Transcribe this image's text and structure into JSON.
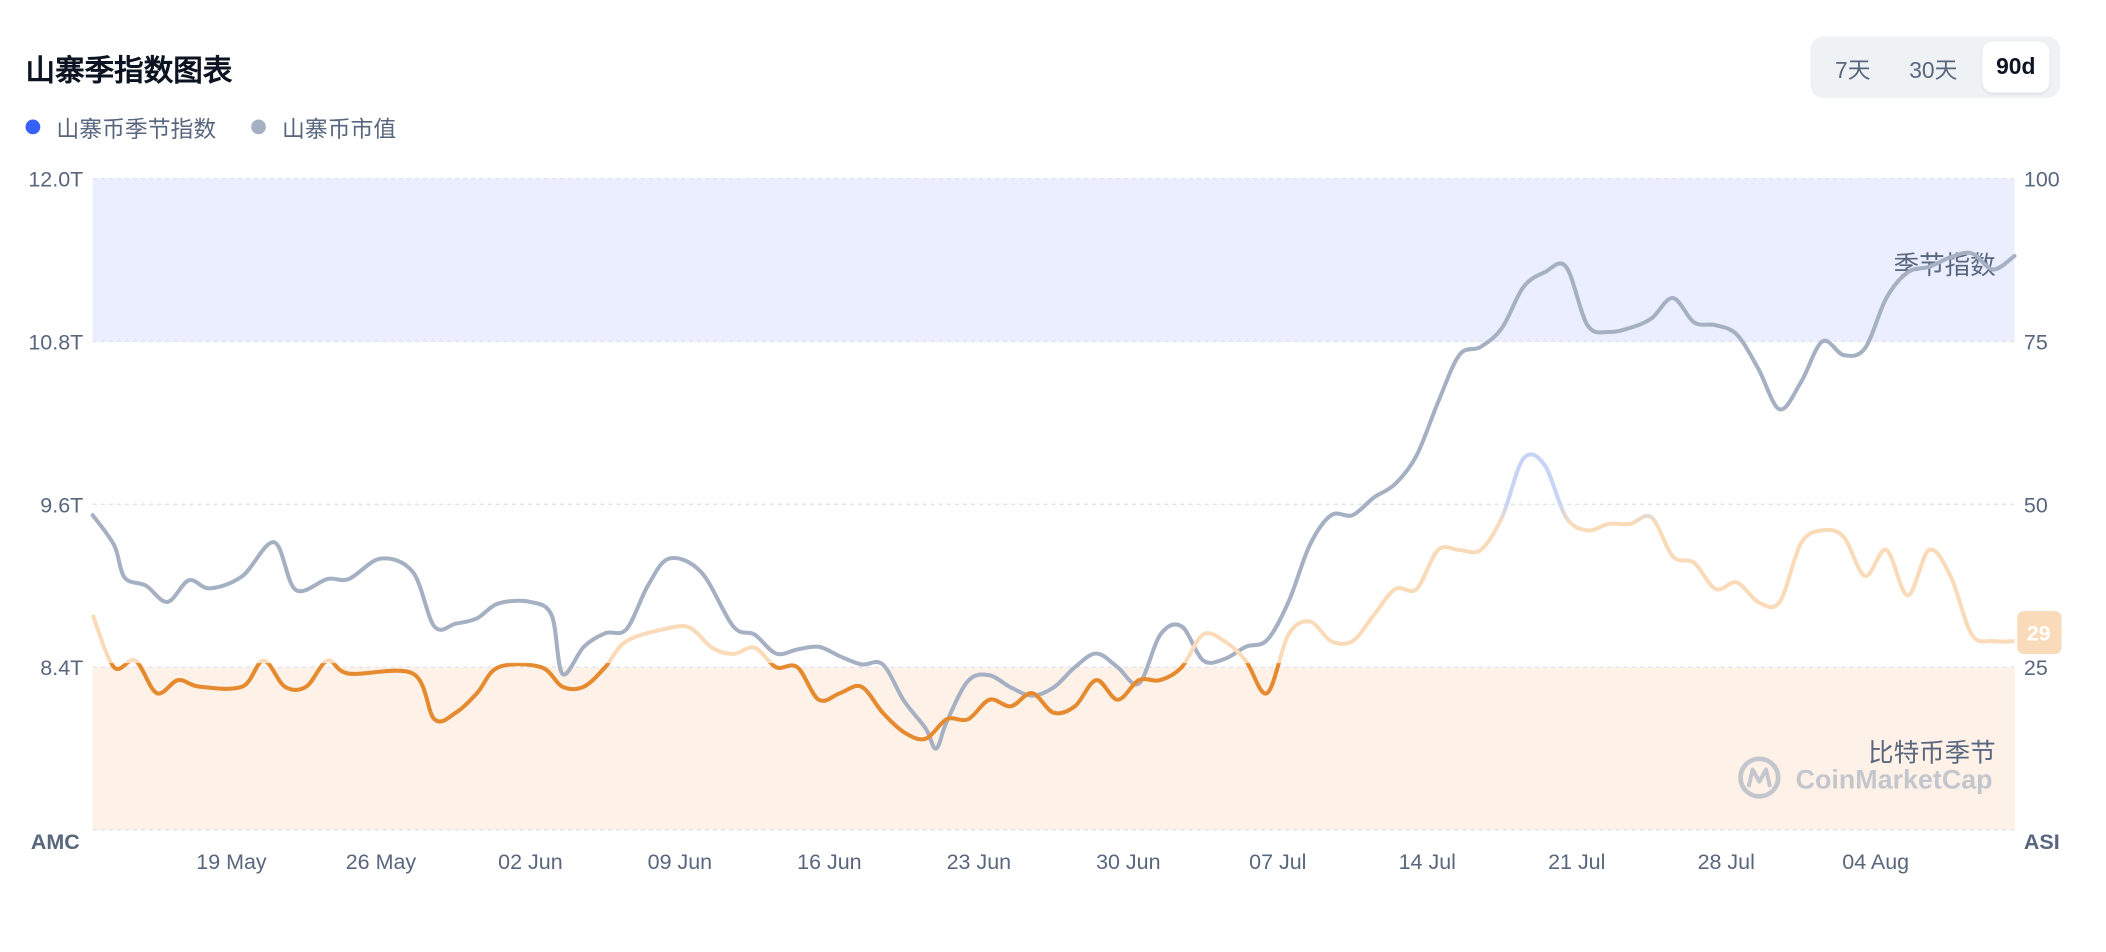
{
  "header": {
    "title": "山寨季指数图表"
  },
  "legend": [
    {
      "label": "山寨币季节指数",
      "color": "#3861fb"
    },
    {
      "label": "山寨币市值",
      "color": "#a6b0c3"
    }
  ],
  "range_toggle": {
    "options": [
      "7天",
      "30天",
      "90d"
    ],
    "selected": "90d"
  },
  "chart_data": {
    "type": "line",
    "left_axis": {
      "name": "AMC",
      "ticks": [
        "12.0T",
        "10.8T",
        "9.6T",
        "8.4T"
      ],
      "range": [
        7.2,
        12.0
      ]
    },
    "right_axis": {
      "name": "ASI",
      "ticks": [
        "100",
        "75",
        "50",
        "25"
      ],
      "range": [
        0,
        100
      ]
    },
    "x_tick_labels": [
      "19 May",
      "26 May",
      "02 Jun",
      "09 Jun",
      "16 Jun",
      "23 Jun",
      "30 Jun",
      "07 Jul",
      "14 Jul",
      "21 Jul",
      "28 Jul",
      "04 Aug"
    ],
    "x_day_range": [
      0,
      90
    ],
    "x_tick_days": [
      6.5,
      13.5,
      20.5,
      27.5,
      34.5,
      41.5,
      48.5,
      55.5,
      62.5,
      69.5,
      76.5,
      83.5
    ],
    "zones": {
      "altcoin_season_min": 75,
      "bitcoin_season_max": 25,
      "altcoin_label": "季节指数",
      "bitcoin_label": "比特币季节"
    },
    "current_index": "29",
    "watermark": "CoinMarketCap",
    "series": [
      {
        "name": "山寨币季节指数",
        "axis": "right",
        "color_base": "#f7931a",
        "points": [
          [
            0,
            33
          ],
          [
            1,
            25
          ],
          [
            2,
            26
          ],
          [
            3,
            21
          ],
          [
            4,
            23
          ],
          [
            5,
            22
          ],
          [
            7,
            22
          ],
          [
            8,
            26
          ],
          [
            9,
            22
          ],
          [
            10,
            22
          ],
          [
            11,
            26
          ],
          [
            12,
            24
          ],
          [
            15,
            24
          ],
          [
            16,
            17
          ],
          [
            17,
            18
          ],
          [
            18,
            21
          ],
          [
            19,
            25
          ],
          [
            21,
            25
          ],
          [
            22,
            22
          ],
          [
            23,
            22
          ],
          [
            24,
            25
          ],
          [
            25,
            29
          ],
          [
            27,
            31
          ],
          [
            28,
            31
          ],
          [
            29,
            28
          ],
          [
            30,
            27
          ],
          [
            31,
            28
          ],
          [
            32,
            25
          ],
          [
            33,
            25
          ],
          [
            34,
            20
          ],
          [
            35,
            21
          ],
          [
            36,
            22
          ],
          [
            37,
            18
          ],
          [
            38,
            15
          ],
          [
            39,
            14
          ],
          [
            40,
            17
          ],
          [
            41,
            17
          ],
          [
            42,
            20
          ],
          [
            43,
            19
          ],
          [
            44,
            21
          ],
          [
            45,
            18
          ],
          [
            46,
            19
          ],
          [
            47,
            23
          ],
          [
            48,
            20
          ],
          [
            49,
            23
          ],
          [
            50,
            23
          ],
          [
            51,
            25
          ],
          [
            52,
            30
          ],
          [
            53,
            29
          ],
          [
            54,
            26
          ],
          [
            55,
            21
          ],
          [
            56,
            30
          ],
          [
            57,
            32
          ],
          [
            58,
            29
          ],
          [
            59,
            29
          ],
          [
            60,
            33
          ],
          [
            61,
            37
          ],
          [
            62,
            37
          ],
          [
            63,
            43
          ],
          [
            64,
            43
          ],
          [
            65,
            43
          ],
          [
            66,
            48
          ],
          [
            67,
            57
          ],
          [
            68,
            56
          ],
          [
            69,
            48
          ],
          [
            70,
            46
          ],
          [
            71,
            47
          ],
          [
            72,
            47
          ],
          [
            73,
            48
          ],
          [
            74,
            42
          ],
          [
            75,
            41
          ],
          [
            76,
            37
          ],
          [
            77,
            38
          ],
          [
            78,
            35
          ],
          [
            79,
            35
          ],
          [
            80,
            44
          ],
          [
            81,
            46
          ],
          [
            82,
            45
          ],
          [
            83,
            39
          ],
          [
            84,
            43
          ],
          [
            85,
            36
          ],
          [
            86,
            43
          ],
          [
            87,
            39
          ],
          [
            88,
            30
          ],
          [
            89,
            29
          ],
          [
            90,
            29
          ]
        ]
      },
      {
        "name": "山寨币市值",
        "axis": "left",
        "color": "#a6b0c3",
        "points": [
          [
            0,
            9.52
          ],
          [
            1,
            9.3
          ],
          [
            1.5,
            9.06
          ],
          [
            2.5,
            9.0
          ],
          [
            3.5,
            8.88
          ],
          [
            4.5,
            9.04
          ],
          [
            5.5,
            8.98
          ],
          [
            7,
            9.07
          ],
          [
            8.5,
            9.32
          ],
          [
            9.5,
            8.97
          ],
          [
            11,
            9.05
          ],
          [
            12,
            9.05
          ],
          [
            13.5,
            9.2
          ],
          [
            15,
            9.1
          ],
          [
            16,
            8.7
          ],
          [
            17,
            8.72
          ],
          [
            18,
            8.76
          ],
          [
            19,
            8.87
          ],
          [
            20.5,
            8.88
          ],
          [
            21.5,
            8.78
          ],
          [
            22,
            8.35
          ],
          [
            23,
            8.55
          ],
          [
            24,
            8.65
          ],
          [
            25,
            8.68
          ],
          [
            26,
            9.0
          ],
          [
            27,
            9.2
          ],
          [
            28.5,
            9.1
          ],
          [
            30,
            8.7
          ],
          [
            31,
            8.64
          ],
          [
            32,
            8.5
          ],
          [
            33,
            8.53
          ],
          [
            34,
            8.55
          ],
          [
            35,
            8.48
          ],
          [
            36,
            8.42
          ],
          [
            37,
            8.42
          ],
          [
            38,
            8.15
          ],
          [
            39,
            7.95
          ],
          [
            39.5,
            7.8
          ],
          [
            40,
            8.0
          ],
          [
            41,
            8.3
          ],
          [
            42,
            8.34
          ],
          [
            43,
            8.25
          ],
          [
            44,
            8.19
          ],
          [
            45,
            8.25
          ],
          [
            46,
            8.4
          ],
          [
            47,
            8.5
          ],
          [
            48,
            8.4
          ],
          [
            49,
            8.28
          ],
          [
            50,
            8.64
          ],
          [
            51,
            8.7
          ],
          [
            52,
            8.45
          ],
          [
            53,
            8.46
          ],
          [
            54,
            8.55
          ],
          [
            55,
            8.6
          ],
          [
            56,
            8.88
          ],
          [
            57,
            9.3
          ],
          [
            58,
            9.52
          ],
          [
            59,
            9.52
          ],
          [
            60,
            9.65
          ],
          [
            61,
            9.75
          ],
          [
            62,
            9.96
          ],
          [
            63,
            10.35
          ],
          [
            64,
            10.7
          ],
          [
            65,
            10.76
          ],
          [
            66,
            10.9
          ],
          [
            67,
            11.2
          ],
          [
            68,
            11.31
          ],
          [
            69,
            11.35
          ],
          [
            70,
            10.92
          ],
          [
            71,
            10.87
          ],
          [
            72,
            10.9
          ],
          [
            73,
            10.97
          ],
          [
            74,
            11.12
          ],
          [
            75,
            10.94
          ],
          [
            76,
            10.92
          ],
          [
            77,
            10.85
          ],
          [
            78,
            10.6
          ],
          [
            79,
            10.3
          ],
          [
            80,
            10.5
          ],
          [
            81,
            10.8
          ],
          [
            82,
            10.7
          ],
          [
            83,
            10.75
          ],
          [
            84,
            11.12
          ],
          [
            85,
            11.31
          ],
          [
            86,
            11.35
          ],
          [
            87,
            11.42
          ],
          [
            88,
            11.45
          ],
          [
            89,
            11.33
          ],
          [
            90,
            11.43
          ]
        ]
      }
    ]
  }
}
